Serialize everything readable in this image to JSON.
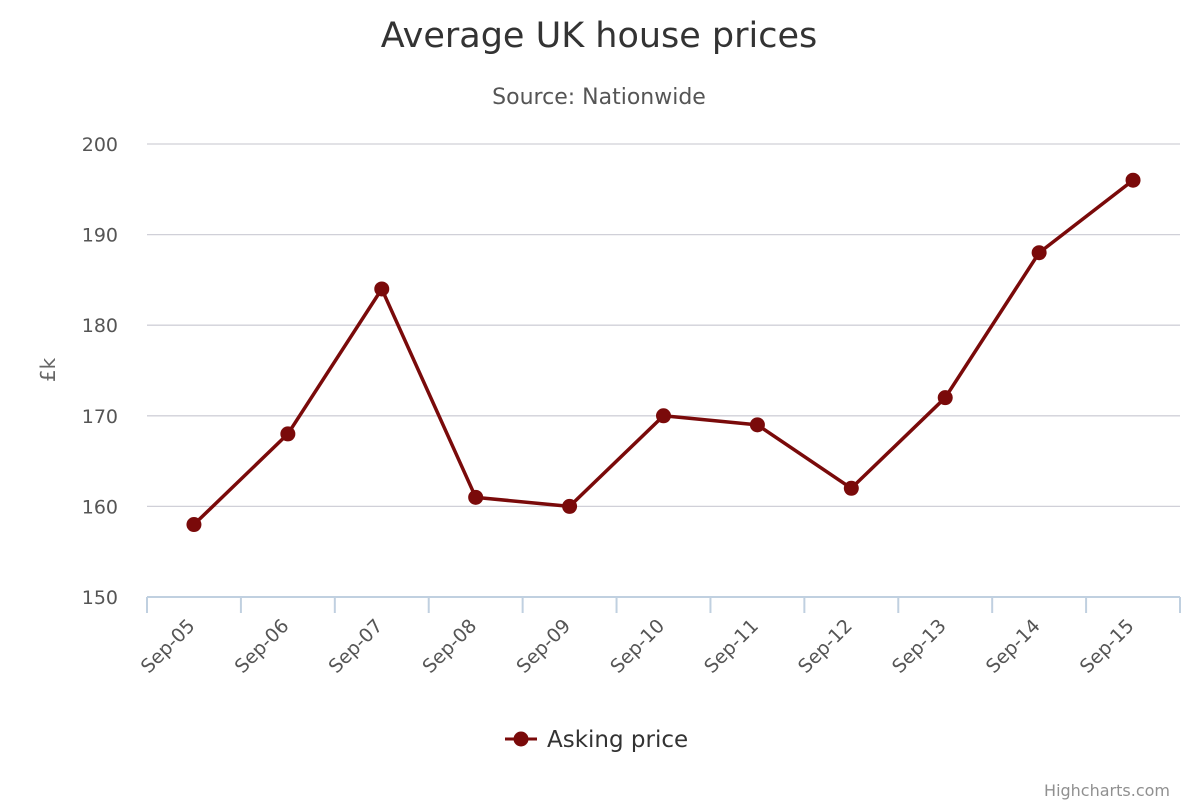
{
  "chart_data": {
    "type": "line",
    "title": "Average UK house prices",
    "subtitle": "Source: Nationwide",
    "categories": [
      "Sep-05",
      "Sep-06",
      "Sep-07",
      "Sep-08",
      "Sep-09",
      "Sep-10",
      "Sep-11",
      "Sep-12",
      "Sep-13",
      "Sep-14",
      "Sep-15"
    ],
    "series": [
      {
        "name": "Asking price",
        "values": [
          158,
          168,
          184,
          161,
          160,
          170,
          169,
          162,
          172,
          188,
          196
        ],
        "color": "#7a0a0a"
      }
    ],
    "xlabel": "",
    "ylabel": "£k",
    "ylim": [
      150,
      200
    ],
    "yticks": [
      150,
      160,
      170,
      180,
      190,
      200
    ],
    "grid": true,
    "legend_position": "bottom-center"
  },
  "credits": "Highcharts.com"
}
